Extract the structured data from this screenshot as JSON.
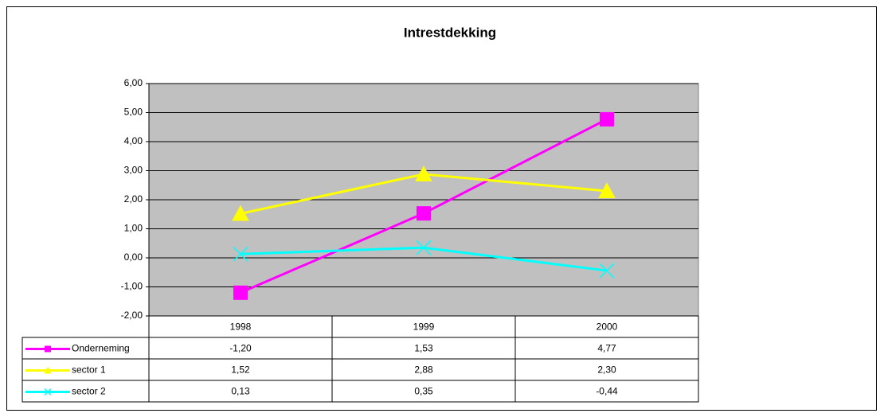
{
  "chart_data": {
    "type": "line",
    "title": "Intrestdekking",
    "categories": [
      "1998",
      "1999",
      "2000"
    ],
    "series": [
      {
        "name": "Onderneming",
        "color": "#ff00ff",
        "marker": "square",
        "values": [
          -1.2,
          1.53,
          4.77
        ],
        "value_labels": [
          "-1,20",
          "1,53",
          "4,77"
        ]
      },
      {
        "name": "sector 1",
        "color": "#ffff00",
        "marker": "triangle",
        "values": [
          1.52,
          2.88,
          2.3
        ],
        "value_labels": [
          "1,52",
          "2,88",
          "2,30"
        ]
      },
      {
        "name": "sector 2",
        "color": "#00ffff",
        "marker": "x",
        "values": [
          0.13,
          0.35,
          -0.44
        ],
        "value_labels": [
          "0,13",
          "0,35",
          "-0,44"
        ]
      }
    ],
    "ylim": [
      -2,
      6
    ],
    "yticks": [
      {
        "value": -2,
        "label": "-2,00"
      },
      {
        "value": -1,
        "label": "-1,00"
      },
      {
        "value": 0,
        "label": "0,00"
      },
      {
        "value": 1,
        "label": "1,00"
      },
      {
        "value": 2,
        "label": "2,00"
      },
      {
        "value": 3,
        "label": "3,00"
      },
      {
        "value": 4,
        "label": "4,00"
      },
      {
        "value": 5,
        "label": "5,00"
      },
      {
        "value": 6,
        "label": "6,00"
      }
    ],
    "grid": true,
    "plot_background": "#c0c0c0"
  }
}
